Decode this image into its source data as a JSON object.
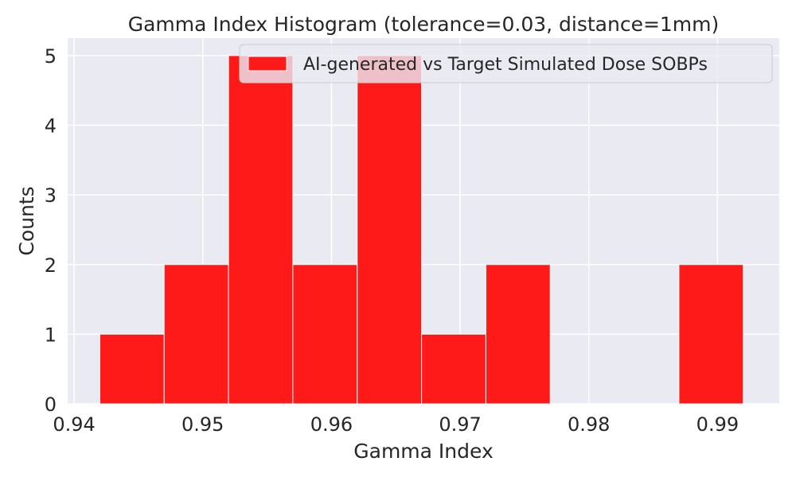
{
  "chart_data": {
    "type": "bar",
    "title": "Gamma Index Histogram (tolerance=0.03, distance=1mm)",
    "xlabel": "Gamma Index",
    "ylabel": "Counts",
    "xlim": [
      0.9395,
      0.9948
    ],
    "ylim": [
      0,
      5.25
    ],
    "x_ticks": [
      0.94,
      0.95,
      0.96,
      0.97,
      0.98,
      0.99
    ],
    "x_tick_labels": [
      "0.94",
      "0.95",
      "0.96",
      "0.97",
      "0.98",
      "0.99"
    ],
    "y_ticks": [
      0,
      1,
      2,
      3,
      4,
      5
    ],
    "y_tick_labels": [
      "0",
      "1",
      "2",
      "3",
      "4",
      "5"
    ],
    "bin_edges": [
      0.942,
      0.947,
      0.952,
      0.957,
      0.962,
      0.967,
      0.972,
      0.977,
      0.982,
      0.987,
      0.992
    ],
    "counts": [
      1,
      2,
      5,
      2,
      5,
      1,
      2,
      0,
      0,
      2
    ],
    "series_name": "AI-generated vs Target Simulated Dose SOBPs",
    "bar_color": "#ff1a1a",
    "background_color": "#eaeaf2",
    "grid": true,
    "legend_position": "top-right"
  }
}
